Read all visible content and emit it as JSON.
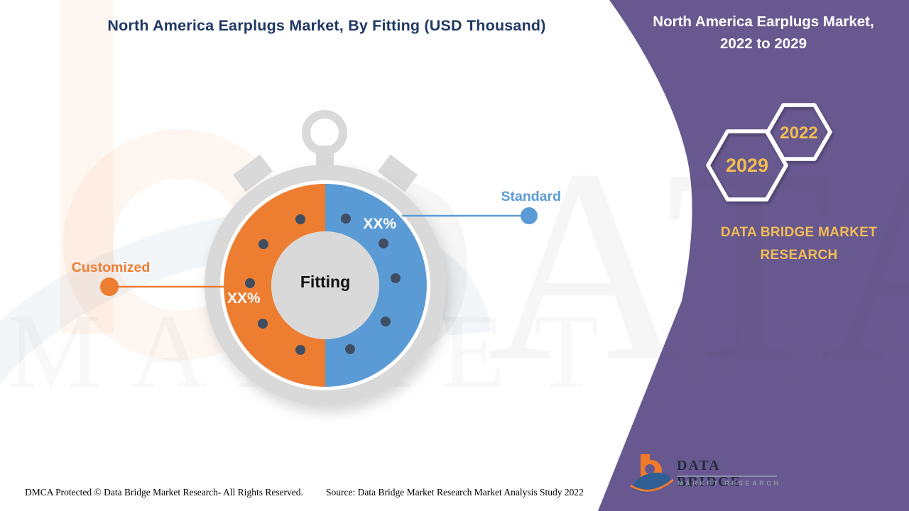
{
  "title": {
    "text": "North America Earplugs Market, By Fitting (USD Thousand)",
    "color": "#1f3864"
  },
  "sidebar": {
    "bg_color": "#685890",
    "heading_line1": "North America Earplugs Market,",
    "heading_line2": "2022 to 2029",
    "hexagon_back_year": "2029",
    "hexagon_front_year": "2022",
    "year_color": "#f2bd4e",
    "brand_text": "DATA BRIDGE MARKET RESEARCH"
  },
  "chart_data": {
    "type": "pie",
    "donut": true,
    "title": "North America Earplugs Market, By Fitting (USD Thousand)",
    "units": "USD Thousand",
    "center_label": "Fitting",
    "segments": [
      {
        "label": "Standard",
        "value_label": "XX%",
        "share_pct": 50,
        "color": "#5b9bd5"
      },
      {
        "label": "Customized",
        "value_label": "XX%",
        "share_pct": 50,
        "color": "#ed7d31"
      }
    ],
    "legend_position": "callouts-left-right",
    "style": "stopwatch donut, split vertically, orange left / blue right"
  },
  "footer": {
    "dmca": "DMCA Protected © Data Bridge Market Research- All Rights Reserved.",
    "source": "Source: Data Bridge Market Research Market Analysis Study 2022"
  },
  "logo": {
    "name_line": "DATA BRIDGE",
    "sub_line": "MARKET RESEARCH"
  },
  "watermark": {
    "line1": "DATA BRIDGE",
    "line2": "MARKET RESEARCH"
  },
  "colors": {
    "accent_blue": "#5b9bd5",
    "accent_orange": "#ed7d31",
    "stopwatch_gray": "#d9d9d9",
    "dot_navy": "#3f4e63",
    "title_navy": "#1f3864",
    "sidebar_purple": "#685890",
    "gold": "#f2bd4e"
  }
}
